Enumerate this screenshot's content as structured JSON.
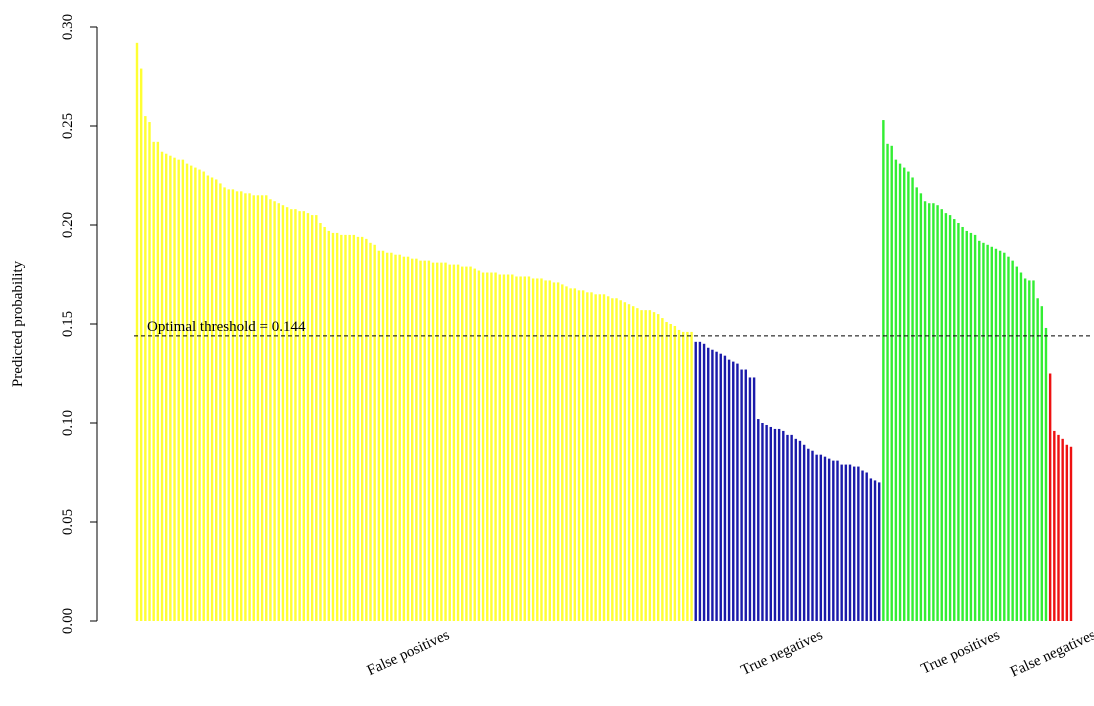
{
  "chart_data": {
    "type": "bar",
    "ylabel": "Predicted probability",
    "xlabel": "",
    "ylim": [
      0,
      0.3
    ],
    "y_ticks": [
      "0.00",
      "0.05",
      "0.10",
      "0.15",
      "0.20",
      "0.25",
      "0.30"
    ],
    "y_tick_values": [
      0,
      0.05,
      0.1,
      0.15,
      0.2,
      0.25,
      0.3
    ],
    "grid": false,
    "threshold": {
      "value": 0.144,
      "label": "Optimal threshold = 0.144",
      "style": "dashed"
    },
    "groups": [
      {
        "name": "False positives",
        "color": "#ffff33",
        "values": [
          0.292,
          0.279,
          0.255,
          0.252,
          0.242,
          0.242,
          0.237,
          0.236,
          0.235,
          0.234,
          0.233,
          0.233,
          0.231,
          0.23,
          0.229,
          0.228,
          0.227,
          0.225,
          0.224,
          0.223,
          0.221,
          0.219,
          0.218,
          0.218,
          0.217,
          0.217,
          0.216,
          0.216,
          0.215,
          0.215,
          0.215,
          0.215,
          0.213,
          0.212,
          0.211,
          0.21,
          0.209,
          0.208,
          0.208,
          0.207,
          0.207,
          0.206,
          0.205,
          0.205,
          0.201,
          0.199,
          0.197,
          0.196,
          0.196,
          0.195,
          0.195,
          0.195,
          0.195,
          0.194,
          0.194,
          0.193,
          0.191,
          0.19,
          0.187,
          0.187,
          0.186,
          0.186,
          0.185,
          0.185,
          0.184,
          0.184,
          0.183,
          0.183,
          0.182,
          0.182,
          0.182,
          0.181,
          0.181,
          0.181,
          0.181,
          0.18,
          0.18,
          0.18,
          0.179,
          0.179,
          0.179,
          0.178,
          0.177,
          0.176,
          0.176,
          0.176,
          0.176,
          0.175,
          0.175,
          0.175,
          0.175,
          0.174,
          0.174,
          0.174,
          0.174,
          0.173,
          0.173,
          0.173,
          0.172,
          0.172,
          0.171,
          0.171,
          0.17,
          0.169,
          0.168,
          0.168,
          0.167,
          0.167,
          0.166,
          0.166,
          0.165,
          0.165,
          0.165,
          0.164,
          0.163,
          0.163,
          0.162,
          0.161,
          0.16,
          0.159,
          0.158,
          0.157,
          0.157,
          0.157,
          0.156,
          0.155,
          0.153,
          0.151,
          0.15,
          0.149,
          0.147,
          0.146,
          0.146,
          0.146
        ]
      },
      {
        "name": "True negatives",
        "color": "#1a1aaa",
        "values": [
          0.141,
          0.141,
          0.14,
          0.138,
          0.137,
          0.136,
          0.135,
          0.134,
          0.132,
          0.131,
          0.13,
          0.127,
          0.127,
          0.123,
          0.123,
          0.102,
          0.1,
          0.099,
          0.098,
          0.097,
          0.097,
          0.096,
          0.094,
          0.094,
          0.092,
          0.091,
          0.089,
          0.087,
          0.086,
          0.084,
          0.084,
          0.083,
          0.082,
          0.081,
          0.081,
          0.079,
          0.079,
          0.079,
          0.078,
          0.078,
          0.076,
          0.075,
          0.072,
          0.071,
          0.07
        ]
      },
      {
        "name": "True positives",
        "color": "#33ee33",
        "values": [
          0.253,
          0.241,
          0.24,
          0.233,
          0.231,
          0.229,
          0.227,
          0.224,
          0.219,
          0.216,
          0.212,
          0.211,
          0.211,
          0.21,
          0.208,
          0.206,
          0.205,
          0.203,
          0.201,
          0.199,
          0.197,
          0.196,
          0.195,
          0.192,
          0.191,
          0.19,
          0.189,
          0.188,
          0.187,
          0.186,
          0.184,
          0.182,
          0.179,
          0.176,
          0.173,
          0.172,
          0.172,
          0.163,
          0.159,
          0.148
        ]
      },
      {
        "name": "False negatives",
        "color": "#ee1111",
        "values": [
          0.125,
          0.096,
          0.094,
          0.092,
          0.089,
          0.088
        ]
      }
    ]
  }
}
